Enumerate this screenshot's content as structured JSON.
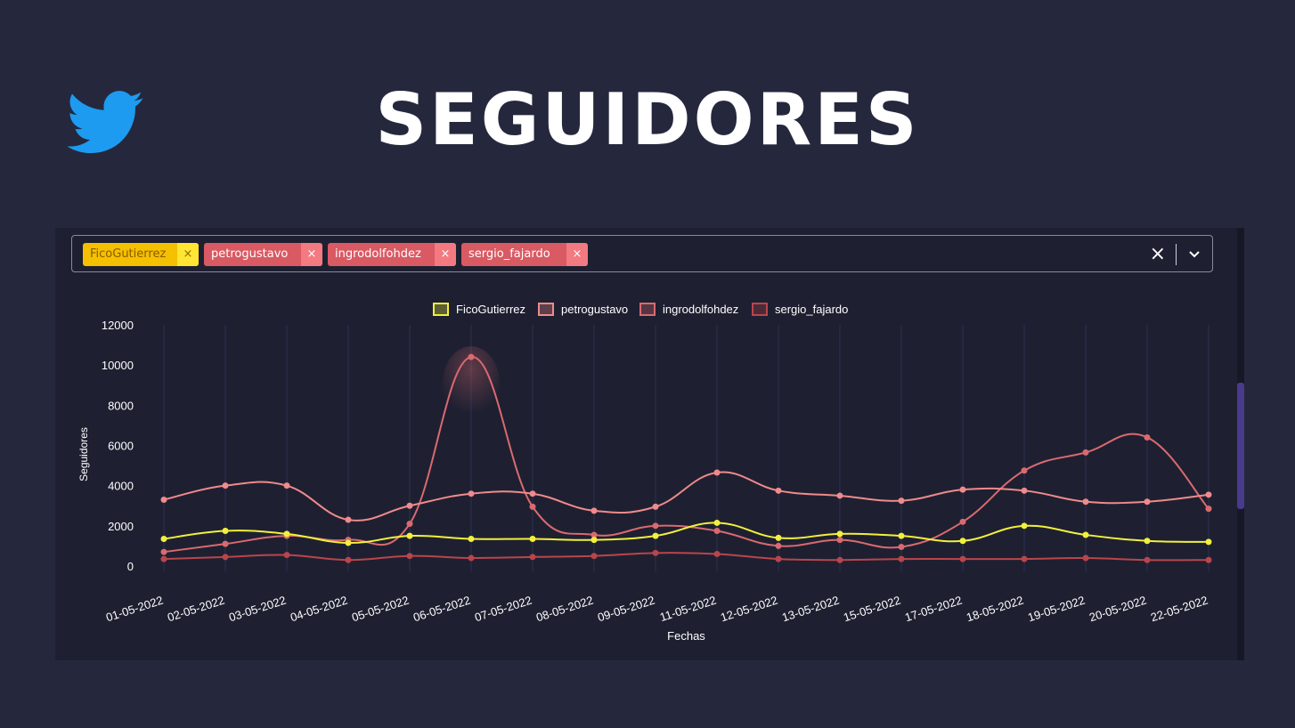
{
  "page": {
    "title": "SEGUIDORES"
  },
  "select": {
    "tags": [
      {
        "label": "FicoGutierrez",
        "style": "yellow"
      },
      {
        "label": "petrogustavo",
        "style": "red"
      },
      {
        "label": "ingrodolfohdez",
        "style": "red"
      },
      {
        "label": "sergio_fajardo",
        "style": "red"
      }
    ],
    "clear_label": "×",
    "remove_label": "×"
  },
  "colors": {
    "background": "#25283d",
    "panel": "#1e2031",
    "twitter_blue": "#1d9bf0"
  },
  "chart_data": {
    "type": "line",
    "xlabel": "Fechas",
    "ylabel": "Seguidores",
    "ylim": [
      0,
      12000
    ],
    "yticks": [
      0,
      2000,
      4000,
      6000,
      8000,
      10000,
      12000
    ],
    "grid": "vertical",
    "legend_position": "top",
    "categories": [
      "01-05-2022",
      "02-05-2022",
      "03-05-2022",
      "04-05-2022",
      "05-05-2022",
      "06-05-2022",
      "07-05-2022",
      "08-05-2022",
      "09-05-2022",
      "11-05-2022",
      "12-05-2022",
      "13-05-2022",
      "15-05-2022",
      "17-05-2022",
      "18-05-2022",
      "19-05-2022",
      "20-05-2022",
      "22-05-2022"
    ],
    "series": [
      {
        "name": "FicoGutierrez",
        "color": "#f2f03c",
        "values": [
          1350,
          1750,
          1600,
          1150,
          1500,
          1350,
          1350,
          1300,
          1500,
          2150,
          1400,
          1600,
          1500,
          1250,
          2000,
          1550,
          1250,
          1200
        ]
      },
      {
        "name": "petrogustavo",
        "color": "#f08a8c",
        "values": [
          3300,
          4000,
          4000,
          2300,
          3000,
          3600,
          3600,
          2750,
          2950,
          4650,
          3750,
          3500,
          3250,
          3800,
          3750,
          3200,
          3200,
          3550
        ]
      },
      {
        "name": "ingrodolfohdez",
        "color": "#d96a70",
        "values": [
          700,
          1100,
          1500,
          1300,
          2100,
          10400,
          2950,
          1550,
          2000,
          1750,
          1000,
          1300,
          950,
          2200,
          4750,
          5650,
          6400,
          2850
        ]
      },
      {
        "name": "sergio_fajardo",
        "color": "#b9454c",
        "values": [
          350,
          450,
          550,
          300,
          500,
          400,
          450,
          500,
          650,
          600,
          350,
          300,
          350,
          350,
          350,
          400,
          300,
          300
        ]
      }
    ]
  }
}
